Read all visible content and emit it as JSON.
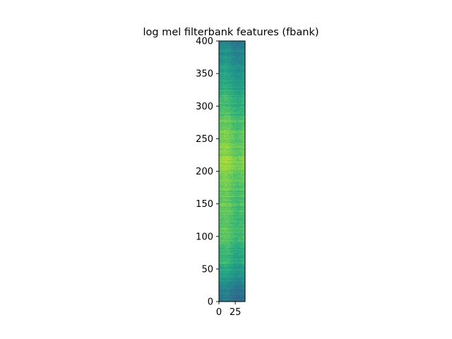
{
  "chart_data": {
    "type": "heatmap",
    "title": "log mel filterbank features (fbank)",
    "xlabel": "",
    "ylabel": "",
    "n_frames": 400,
    "n_mel_bins": 40,
    "xlim": [
      0,
      40
    ],
    "ylim": [
      0,
      400
    ],
    "x_ticks": [
      0,
      25
    ],
    "y_ticks": [
      0,
      50,
      100,
      150,
      200,
      250,
      300,
      350,
      400
    ],
    "colormap": "viridis",
    "origin": "lower",
    "grid": false,
    "intensity_profile": {
      "frames": [
        0,
        20,
        40,
        60,
        80,
        100,
        120,
        140,
        160,
        180,
        200,
        220,
        240,
        260,
        280,
        300,
        320,
        340,
        360,
        380,
        400
      ],
      "level": [
        0.4,
        0.42,
        0.55,
        0.62,
        0.66,
        0.7,
        0.72,
        0.72,
        0.74,
        0.76,
        0.8,
        0.81,
        0.79,
        0.76,
        0.72,
        0.68,
        0.63,
        0.58,
        0.52,
        0.48,
        0.44
      ]
    }
  }
}
